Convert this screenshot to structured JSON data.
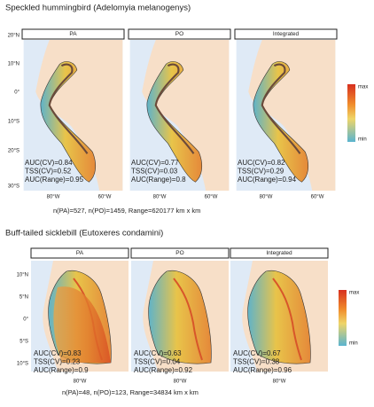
{
  "panels": [
    {
      "title": "Speckled hummingbird (Adelomyia melanogenys)",
      "facets": [
        {
          "label": "PA",
          "stats": [
            "AUC(CV)=0.84",
            "TSS(CV)=0.52",
            "AUC(Range)=0.95"
          ]
        },
        {
          "label": "PO",
          "stats": [
            "AUC(CV)=0.77",
            "TSS(CV)=0.03",
            "AUC(Range)=0.8"
          ]
        },
        {
          "label": "Integrated",
          "stats": [
            "AUC(CV)=0.82",
            "TSS(CV)=0.29",
            "AUC(Range)=0.94"
          ]
        }
      ],
      "y_axis_labels": [
        "20°N",
        "10°N",
        "0°",
        "10°S",
        "20°S",
        "30°S"
      ],
      "x_axis_labels": [
        "80°W",
        "60°W"
      ],
      "legend": {
        "max": "max",
        "min": "min"
      },
      "footer": "n(PA)=527, n(PO)=1459, Range=620177 km x km"
    },
    {
      "title": "Buff-tailed sicklebill (Eutoxeres condamini)",
      "facets": [
        {
          "label": "PA",
          "stats": [
            "AUC(CV)=0.83",
            "TSS(CV)=0.23",
            "AUC(Range)=0.9"
          ]
        },
        {
          "label": "PO",
          "stats": [
            "AUC(CV)=0.63",
            "TSS(CV)=0.04",
            "AUC(Range)=0.92"
          ]
        },
        {
          "label": "Integrated",
          "stats": [
            "AUC(CV)=0.67",
            "TSS(CV)=0.38",
            "AUC(Range)=0.96"
          ]
        }
      ],
      "y_axis_labels": [
        "10°N",
        "5°N",
        "0°",
        "5°S",
        "10°S"
      ],
      "x_axis_labels": [
        "80°W"
      ],
      "legend": {
        "max": "max",
        "min": "min"
      },
      "footer": "n(PA)=48, n(PO)=123, Range=34834 km x km"
    }
  ]
}
